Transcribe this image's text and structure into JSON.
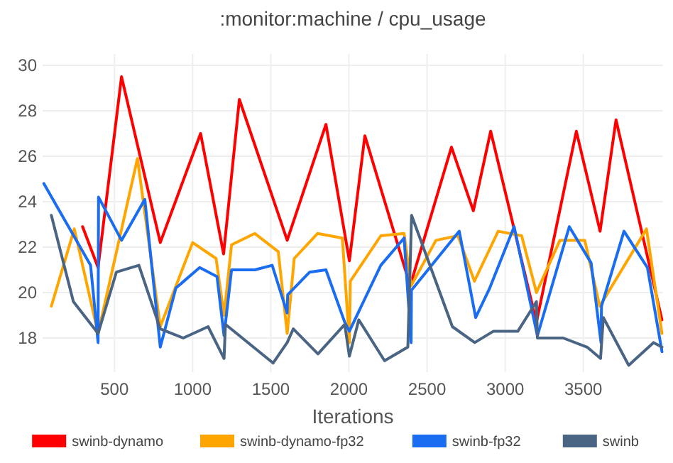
{
  "chart_data": {
    "type": "line",
    "title": ":monitor:machine / cpu_usage",
    "xlabel": "Iterations",
    "xlim": [
      40,
      4010
    ],
    "ylim": [
      16.5,
      30.5
    ],
    "xticks": [
      500,
      1000,
      1500,
      2000,
      2500,
      3000,
      3500
    ],
    "yticks": [
      18,
      20,
      22,
      24,
      26,
      28,
      30
    ],
    "grid": true,
    "legend": "bottom",
    "marker": "none",
    "line_style": "solid",
    "series": [
      {
        "name": "swinb-dynamo",
        "color": "#ff0000",
        "x": [
          296,
          395,
          545,
          793,
          1051,
          1198,
          1299,
          1605,
          1853,
          2003,
          2102,
          2392,
          2656,
          2796,
          2907,
          3200,
          3455,
          3607,
          3709,
          4003
        ],
        "values": [
          22.9,
          21.1,
          29.5,
          22.2,
          27.0,
          21.7,
          28.5,
          22.3,
          27.4,
          21.4,
          26.9,
          20.3,
          26.4,
          23.6,
          27.1,
          18.7,
          27.1,
          22.7,
          27.6,
          18.8
        ]
      },
      {
        "name": "swinb-dynamo-fp32",
        "color": "#ffa500",
        "x": [
          96,
          243,
          395,
          647,
          793,
          1000,
          1150,
          1201,
          1249,
          1398,
          1548,
          1605,
          1650,
          1799,
          1958,
          2003,
          2009,
          2204,
          2353,
          2398,
          2557,
          2698,
          2803,
          2955,
          3105,
          3200,
          3350,
          3509,
          3605,
          3904,
          4003
        ],
        "values": [
          19.4,
          22.8,
          18.2,
          25.9,
          18.5,
          22.2,
          21.5,
          19.0,
          22.1,
          22.6,
          21.8,
          18.2,
          21.5,
          22.6,
          22.4,
          17.8,
          20.5,
          22.5,
          22.6,
          20.3,
          22.3,
          22.5,
          20.5,
          22.7,
          22.5,
          20.0,
          22.3,
          22.3,
          19.4,
          22.8,
          18.2
        ]
      },
      {
        "name": "swinb-fp32",
        "color": "#1a6cf0",
        "x": [
          48,
          347,
          395,
          398,
          545,
          694,
          793,
          893,
          1045,
          1156,
          1201,
          1249,
          1398,
          1509,
          1605,
          1608,
          1749,
          1853,
          1973,
          2003,
          2204,
          2353,
          2398,
          2400,
          2706,
          2811,
          2901,
          3057,
          3206,
          3410,
          3550,
          3613,
          3616,
          3760,
          3910,
          4003
        ],
        "values": [
          24.8,
          21.2,
          17.8,
          24.2,
          22.3,
          24.1,
          17.6,
          20.2,
          21.1,
          20.7,
          18.1,
          21.0,
          21.0,
          21.2,
          19.1,
          19.9,
          20.9,
          21.0,
          18.7,
          18.3,
          21.2,
          22.4,
          17.8,
          20.1,
          22.7,
          18.9,
          20.2,
          22.9,
          18.1,
          22.9,
          21.3,
          17.8,
          19.4,
          22.7,
          21.1,
          17.4
        ]
      },
      {
        "name": "swinb",
        "color": "#4a6484",
        "x": [
          96,
          237,
          395,
          512,
          656,
          793,
          940,
          1099,
          1201,
          1210,
          1515,
          1605,
          1644,
          1802,
          1973,
          2003,
          2063,
          2228,
          2377,
          2401,
          2662,
          2805,
          2925,
          3081,
          3200,
          3206,
          3371,
          3524,
          3610,
          3628,
          3790,
          3949,
          4003
        ],
        "values": [
          23.4,
          19.6,
          18.2,
          20.9,
          21.2,
          18.4,
          18.0,
          18.5,
          17.1,
          18.6,
          16.9,
          17.8,
          18.4,
          17.3,
          18.6,
          17.2,
          18.8,
          17.0,
          17.6,
          23.4,
          18.5,
          17.8,
          18.3,
          18.3,
          19.6,
          18.0,
          18.0,
          17.6,
          17.1,
          18.9,
          16.8,
          17.8,
          17.6
        ]
      }
    ]
  }
}
